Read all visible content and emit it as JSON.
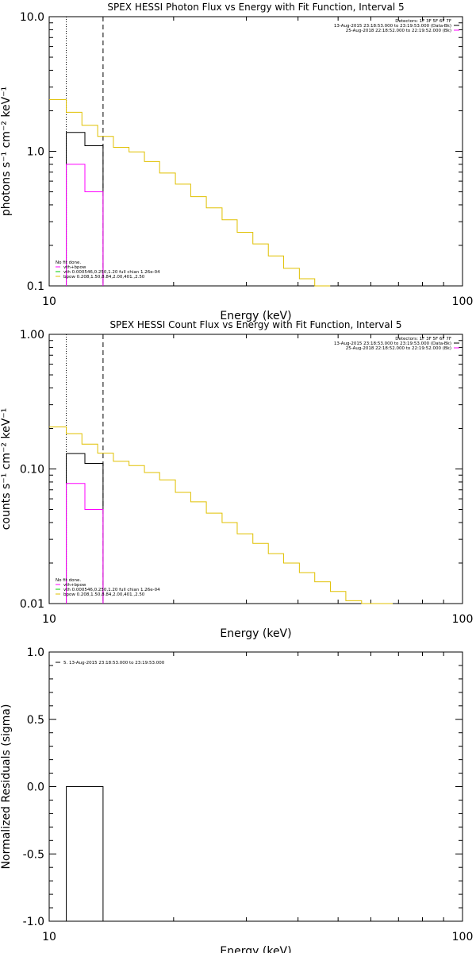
{
  "chart_data": [
    {
      "type": "line",
      "title": "SPEX HESSI Photon Flux vs Energy with Fit Function, Interval 5",
      "xlabel": "Energy (keV)",
      "ylabel": "photons s⁻¹ cm⁻² keV⁻¹",
      "xscale": "log",
      "yscale": "log",
      "xlim": [
        10,
        100
      ],
      "ylim": [
        0.1,
        10.0
      ],
      "xticks": [
        {
          "v": 10,
          "label": "10"
        },
        {
          "v": 100,
          "label": "100"
        }
      ],
      "yticks": [
        {
          "v": 0.1,
          "label": "0.1"
        },
        {
          "v": 1.0,
          "label": "1.0"
        },
        {
          "v": 10.0,
          "label": "10.0"
        }
      ],
      "vlines": [
        {
          "x": 11.0,
          "style": "dotted"
        },
        {
          "x": 13.5,
          "style": "dashed"
        }
      ],
      "header_lines": [
        "Detectors: 1F 3F 5F 6F 7F",
        "13-Aug-2015 23:18:53.000 to 23:19:53.000 (Data-Bk)",
        "25-Aug-2018 22:18:52.000 to 22:19:52.000 (Bk)"
      ],
      "legend_lines": [
        {
          "text": "No fit done.",
          "color": "#000000"
        },
        {
          "text": "vth+bpow",
          "color": "#ff00ff"
        },
        {
          "text": "vth 0.000546,0.250,1.20  full chian 1.26e-04",
          "color": "#00cc00"
        },
        {
          "text": "bpow 0.208,1.50,8.84,2.00,401.,2.50",
          "color": "#e0c000"
        }
      ],
      "series": [
        {
          "color": "#e0c000",
          "type": "step",
          "x": [
            10.0,
            11.0,
            12.0,
            13.1,
            14.3,
            15.6,
            17.0,
            18.5,
            20.2,
            22.0,
            24.0,
            26.2,
            28.5,
            31.1,
            33.9,
            36.9,
            40.3,
            43.9
          ],
          "y": [
            2.42,
            1.95,
            1.56,
            1.29,
            1.07,
            0.99,
            0.84,
            0.69,
            0.57,
            0.46,
            0.38,
            0.31,
            0.25,
            0.205,
            0.167,
            0.135,
            0.113,
            0.1
          ]
        },
        {
          "color": "#000000",
          "type": "step",
          "x": [
            11.0,
            12.2,
            13.5
          ],
          "y": [
            1.38,
            1.1,
            1.1
          ]
        },
        {
          "color": "#ff00ff",
          "type": "step",
          "x": [
            11.0,
            12.2,
            13.5
          ],
          "y": [
            0.8,
            0.5,
            0.5
          ]
        }
      ]
    },
    {
      "type": "line",
      "title": "SPEX HESSI Count Flux vs Energy with Fit Function, Interval 5",
      "xlabel": "Energy (keV)",
      "ylabel": "counts s⁻¹ cm⁻² keV⁻¹",
      "xscale": "log",
      "yscale": "log",
      "xlim": [
        10,
        100
      ],
      "ylim": [
        0.01,
        1.0
      ],
      "xticks": [
        {
          "v": 10,
          "label": "10"
        },
        {
          "v": 100,
          "label": "100"
        }
      ],
      "yticks": [
        {
          "v": 0.01,
          "label": "0.01"
        },
        {
          "v": 0.1,
          "label": "0.10"
        },
        {
          "v": 1.0,
          "label": "1.00"
        }
      ],
      "vlines": [
        {
          "x": 11.0,
          "style": "dotted"
        },
        {
          "x": 13.5,
          "style": "dashed"
        }
      ],
      "header_lines": [
        "Detectors: 1F 3F 5F 6F 7F",
        "13-Aug-2015 23:18:53.000 to 23:19:53.000 (Data-Bk)",
        "25-Aug-2018 22:18:52.000 to 22:19:52.000 (Bk)"
      ],
      "legend_lines": [
        {
          "text": "No fit done.",
          "color": "#000000"
        },
        {
          "text": "vth+bpow",
          "color": "#ff00ff"
        },
        {
          "text": "vth 0.000546,0.250,1.20  full chian 1.26e-04",
          "color": "#00cc00"
        },
        {
          "text": "bpow 0.208,1.50,8.84,2.00,401.,2.50",
          "color": "#e0c000"
        }
      ],
      "series": [
        {
          "color": "#e0c000",
          "type": "step",
          "x": [
            10.0,
            11.0,
            12.0,
            13.1,
            14.3,
            15.6,
            17.0,
            18.5,
            20.2,
            22.0,
            24.0,
            26.2,
            28.5,
            31.1,
            33.9,
            36.9,
            40.3,
            43.9,
            47.9,
            52.2,
            57.0,
            62.2
          ],
          "y": [
            0.205,
            0.183,
            0.153,
            0.131,
            0.114,
            0.106,
            0.094,
            0.083,
            0.067,
            0.057,
            0.047,
            0.04,
            0.033,
            0.028,
            0.0235,
            0.02,
            0.017,
            0.0145,
            0.0123,
            0.0105,
            0.0093,
            0.0093
          ]
        },
        {
          "color": "#000000",
          "type": "step",
          "x": [
            11.0,
            12.2,
            13.5
          ],
          "y": [
            0.13,
            0.11,
            0.11
          ]
        },
        {
          "color": "#ff00ff",
          "type": "step",
          "x": [
            11.0,
            12.2,
            13.5
          ],
          "y": [
            0.078,
            0.05,
            0.05
          ]
        }
      ]
    },
    {
      "type": "line",
      "title": "",
      "xlabel": "Energy (keV)",
      "ylabel": "Normalized Residuals (sigma)",
      "xscale": "log",
      "yscale": "linear",
      "xlim": [
        10,
        100
      ],
      "ylim": [
        -1.0,
        1.0
      ],
      "xticks": [
        {
          "v": 10,
          "label": "10"
        },
        {
          "v": 100,
          "label": "100"
        }
      ],
      "yticks": [
        {
          "v": -1.0,
          "label": "-1.0"
        },
        {
          "v": -0.5,
          "label": "-0.5"
        },
        {
          "v": 0.0,
          "label": "0.0"
        },
        {
          "v": 0.5,
          "label": "0.5"
        },
        {
          "v": 1.0,
          "label": "1.0"
        }
      ],
      "vlines": [],
      "header_lines": [],
      "legend_lines": [
        {
          "text": "5. 13-Aug-2015 23:18:53.000 to 23:19:53.000",
          "color": "#000000"
        }
      ],
      "series": [
        {
          "color": "#000000",
          "type": "box",
          "x": [
            11.0,
            13.5
          ],
          "y": [
            0.0,
            -1.0
          ]
        }
      ]
    }
  ]
}
